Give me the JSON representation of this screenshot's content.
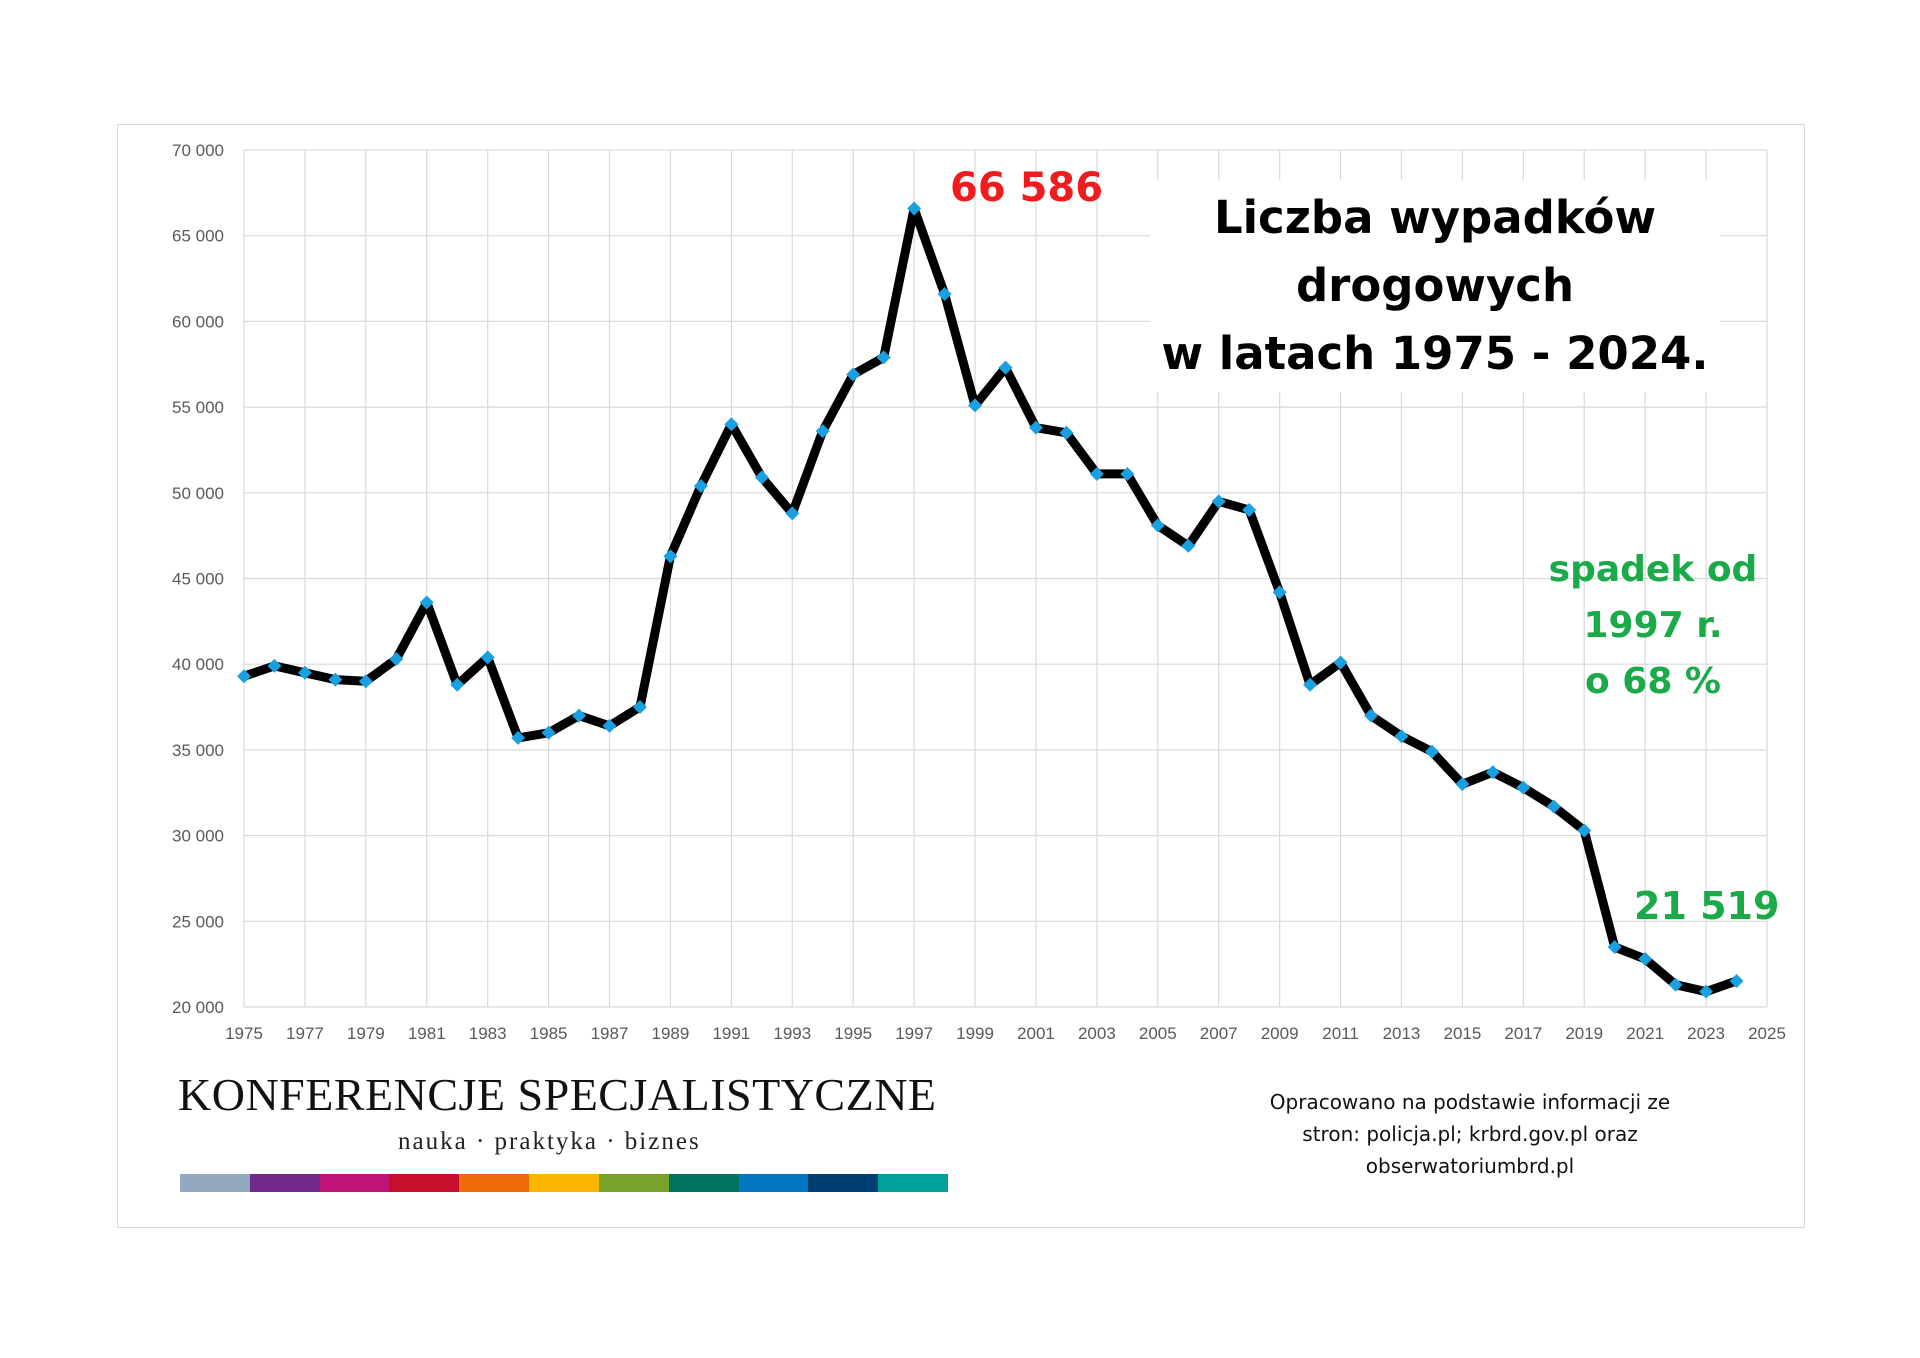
{
  "chart_data": {
    "type": "line",
    "title_lines": [
      "Liczba wypadków",
      "drogowych",
      "w latach 1975 - 2024."
    ],
    "xlabel": "",
    "ylabel": "",
    "xlim": [
      1975,
      2025
    ],
    "ylim": [
      20000,
      70000
    ],
    "x_ticks": [
      "1975",
      "1977",
      "1979",
      "1981",
      "1983",
      "1985",
      "1987",
      "1989",
      "1991",
      "1993",
      "1995",
      "1997",
      "1999",
      "2001",
      "2003",
      "2005",
      "2007",
      "2009",
      "2011",
      "2013",
      "2015",
      "2017",
      "2019",
      "2021",
      "2023",
      "2025"
    ],
    "y_ticks": [
      "20 000",
      "25 000",
      "30 000",
      "35 000",
      "40 000",
      "45 000",
      "50 000",
      "55 000",
      "60 000",
      "65 000",
      "70 000"
    ],
    "grid": true,
    "legend": "none",
    "series": [
      {
        "line_color": "#000000",
        "marker_color": "#1a9fe0",
        "marker": "diamond",
        "x": [
          1975,
          1976,
          1977,
          1978,
          1979,
          1980,
          1981,
          1982,
          1983,
          1984,
          1985,
          1986,
          1987,
          1988,
          1989,
          1990,
          1991,
          1992,
          1993,
          1994,
          1995,
          1996,
          1997,
          1998,
          1999,
          2000,
          2001,
          2002,
          2003,
          2004,
          2005,
          2006,
          2007,
          2008,
          2009,
          2010,
          2011,
          2012,
          2013,
          2014,
          2015,
          2016,
          2017,
          2018,
          2019,
          2020,
          2021,
          2022,
          2023,
          2024
        ],
        "y": [
          39300,
          39900,
          39500,
          39100,
          39000,
          40300,
          43600,
          38800,
          40400,
          35700,
          36000,
          37000,
          36400,
          37500,
          46300,
          50400,
          54000,
          50900,
          48800,
          53600,
          56900,
          57900,
          66586,
          61600,
          55100,
          57300,
          53800,
          53500,
          51100,
          51100,
          48100,
          46900,
          49500,
          49000,
          44200,
          38800,
          40100,
          37000,
          35800,
          34900,
          33000,
          33700,
          32800,
          31700,
          30300,
          23500,
          22800,
          21300,
          20900,
          21519
        ]
      }
    ],
    "annotations": {
      "peak": "66 586",
      "last": "21 519",
      "drop_lines": [
        "spadek od",
        "1997 r.",
        "o 68 %"
      ]
    },
    "colors": {
      "peak": "#ee1c1c",
      "green": "#1aaa4a",
      "grid": "#d9d9d9",
      "tick_text": "#595959"
    }
  },
  "logo": {
    "title": "KONFERENCJE SPECJALISTYCZNE",
    "subtitle": "nauka · praktyka · biznes",
    "bar_colors": [
      "#94a9c0",
      "#722a8a",
      "#c01478",
      "#c8102e",
      "#ed6b0b",
      "#fbb600",
      "#78a22a",
      "#00735f",
      "#0077c0",
      "#003f72",
      "#00a19a"
    ]
  },
  "source_lines": [
    "Opracowano na podstawie informacji ze",
    "stron: policja.pl; krbrd.gov.pl oraz",
    "obserwatoriumbrd.pl"
  ]
}
